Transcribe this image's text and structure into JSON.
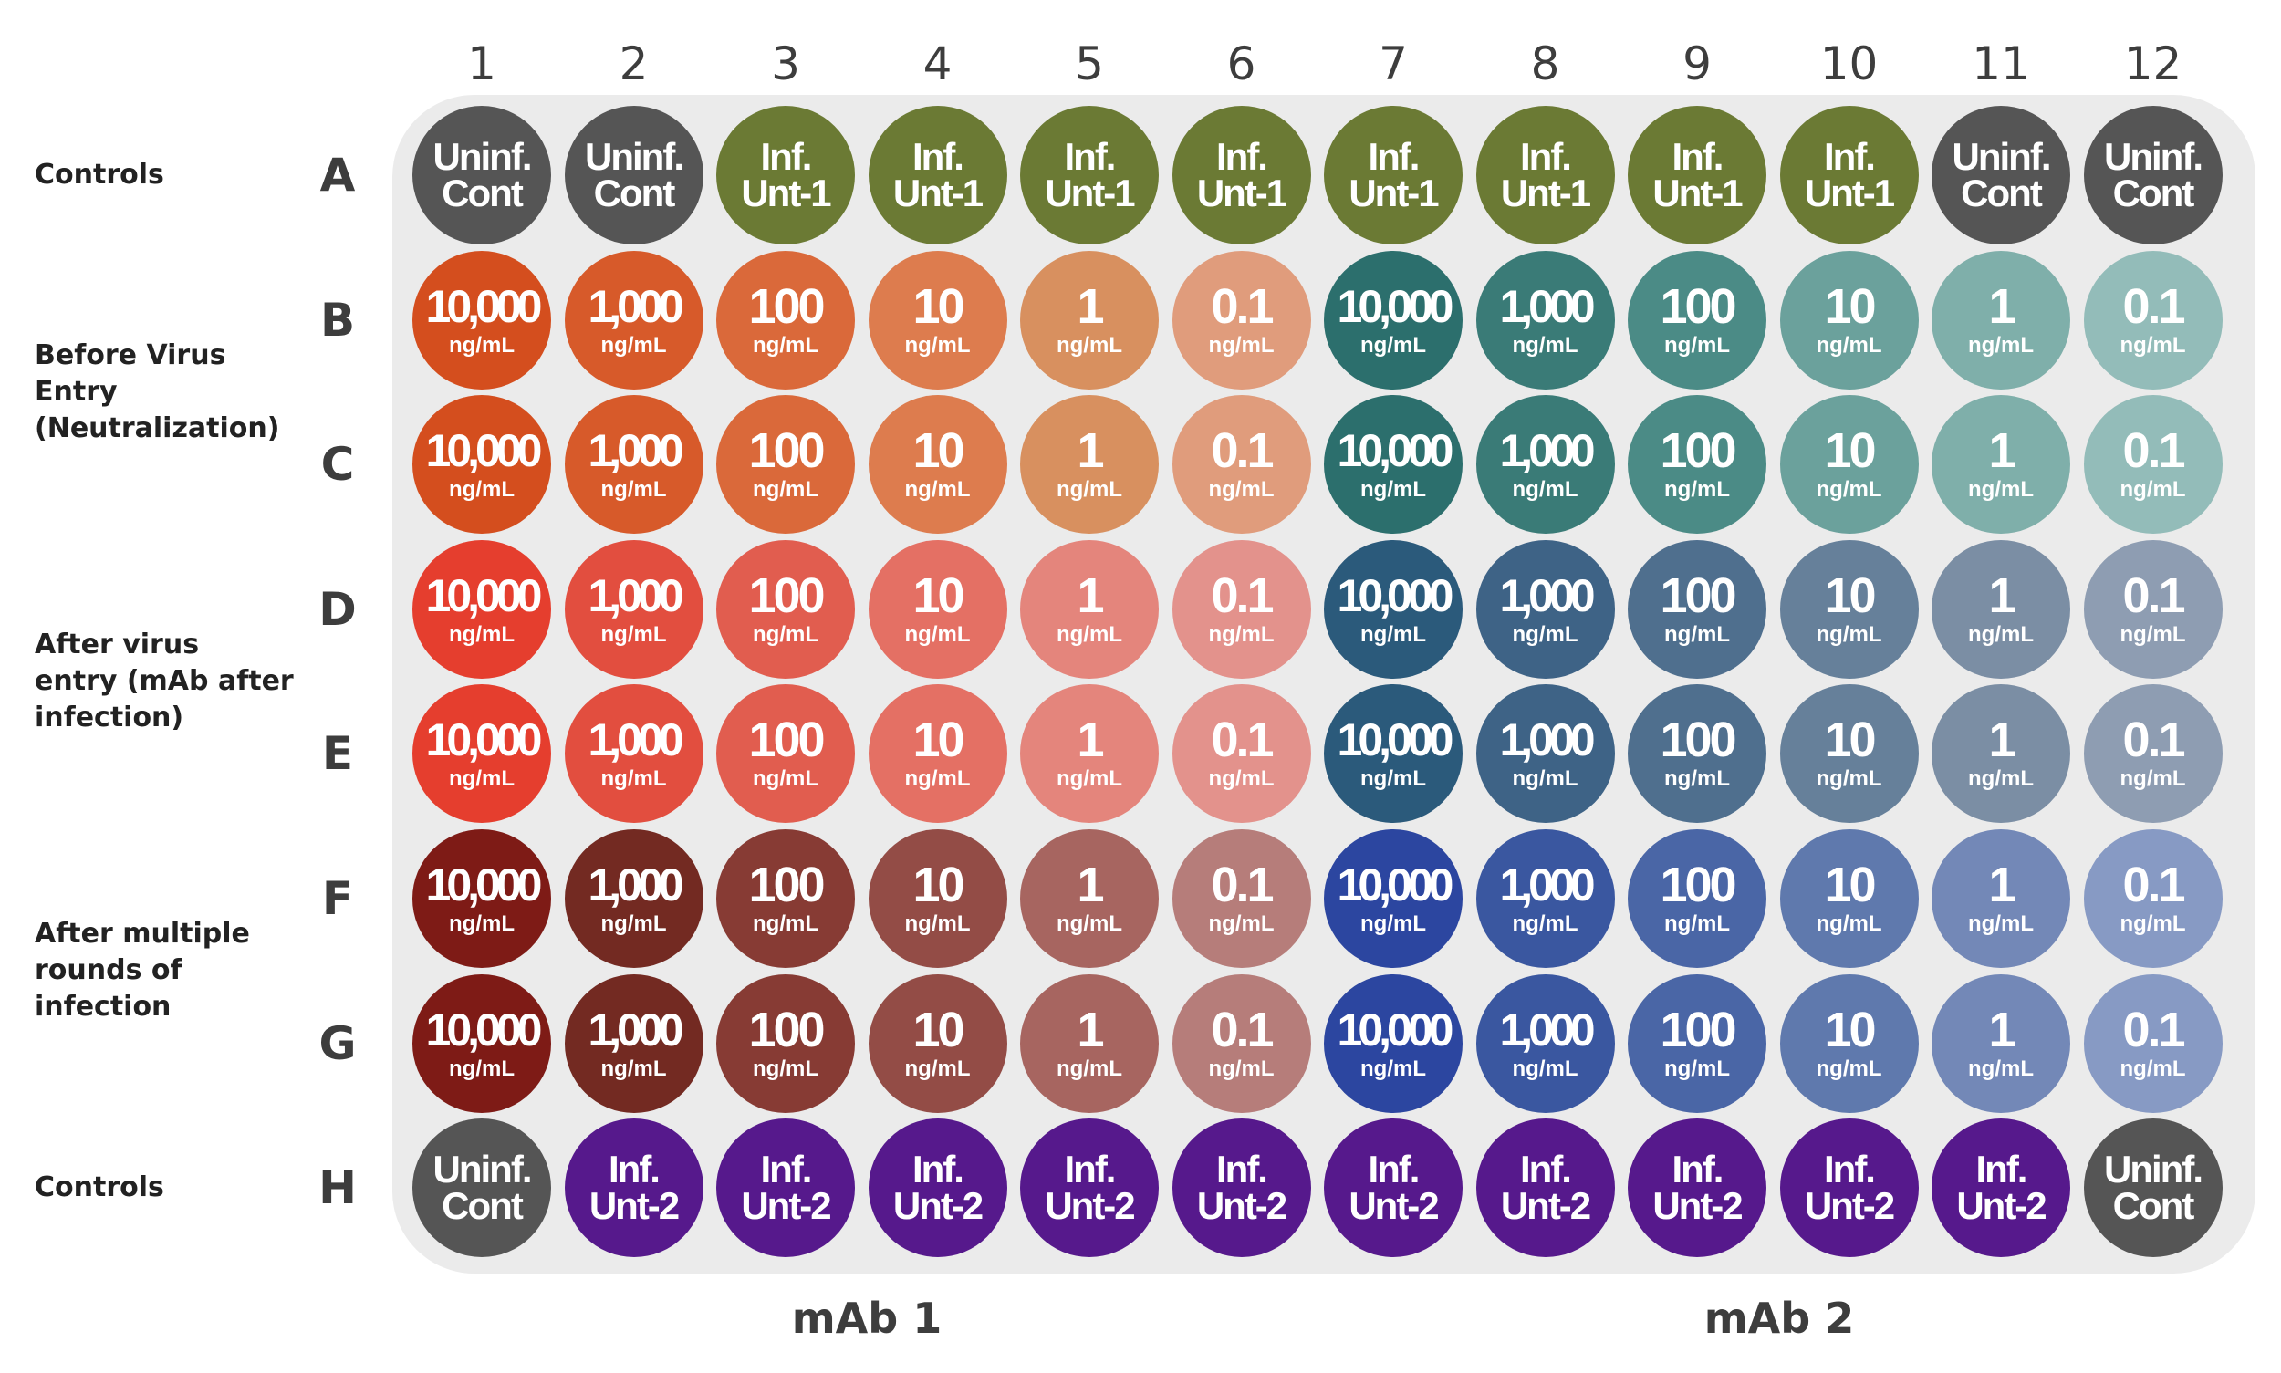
{
  "columns": [
    "1",
    "2",
    "3",
    "4",
    "5",
    "6",
    "7",
    "8",
    "9",
    "10",
    "11",
    "12"
  ],
  "rows": [
    "A",
    "B",
    "C",
    "D",
    "E",
    "F",
    "G",
    "H"
  ],
  "group_labels": [
    {
      "text": "Controls",
      "row": "A"
    },
    {
      "text": "Before Virus\nEntry\n(Neutralization)",
      "rows": [
        "B",
        "C"
      ]
    },
    {
      "text": "After virus\nentry (mAb after\ninfection)",
      "rows": [
        "D",
        "E"
      ]
    },
    {
      "text": "After multiple\nrounds of\ninfection",
      "rows": [
        "F",
        "G"
      ]
    },
    {
      "text": "Controls",
      "row": "H"
    }
  ],
  "antibody_labels": [
    "mAb 1",
    "mAb 2"
  ],
  "unit": "ng/mL",
  "control_labels": {
    "uninfected": [
      "Uninf.",
      "Cont"
    ],
    "infected_1": [
      "Inf.",
      "Unt-1"
    ],
    "infected_2": [
      "Inf.",
      "Unt-2"
    ]
  },
  "concentrations": [
    "10,000",
    "1,000",
    "100",
    "10",
    "1",
    "0.1",
    "10,000",
    "1,000",
    "100",
    "10",
    "1",
    "0.1"
  ],
  "plate": {
    "A": [
      {
        "type": "uninfected",
        "color": "#555555"
      },
      {
        "type": "uninfected",
        "color": "#555555"
      },
      {
        "type": "infected_1",
        "color": "#6b7a34"
      },
      {
        "type": "infected_1",
        "color": "#6b7a34"
      },
      {
        "type": "infected_1",
        "color": "#6b7a34"
      },
      {
        "type": "infected_1",
        "color": "#6b7a34"
      },
      {
        "type": "infected_1",
        "color": "#6b7a34"
      },
      {
        "type": "infected_1",
        "color": "#6b7a34"
      },
      {
        "type": "infected_1",
        "color": "#6b7a34"
      },
      {
        "type": "infected_1",
        "color": "#6b7a34"
      },
      {
        "type": "uninfected",
        "color": "#555555"
      },
      {
        "type": "uninfected",
        "color": "#555555"
      }
    ],
    "B": [
      "#d44e1e",
      "#d75a2a",
      "#da693a",
      "#dd7c4e",
      "#d8905f",
      "#e09c7c",
      "#2c6f6d",
      "#3a7b77",
      "#4b8b86",
      "#6ba19c",
      "#7fafaa",
      "#93bcb9"
    ],
    "C": [
      "#d44e1e",
      "#d75a2a",
      "#da693a",
      "#dd7c4e",
      "#d8905f",
      "#e09c7c",
      "#2c6f6d",
      "#3a7b77",
      "#4b8b86",
      "#6ba19c",
      "#7fafaa",
      "#93bcb9"
    ],
    "D": [
      "#e53e2e",
      "#e24e3f",
      "#e15d4f",
      "#e47064",
      "#e4857c",
      "#e3928c",
      "#2b5a7b",
      "#3e6386",
      "#4f6f8e",
      "#66809a",
      "#7b8ea4",
      "#8e9db2"
    ],
    "E": [
      "#e53e2e",
      "#e24e3f",
      "#e15d4f",
      "#e47064",
      "#e4857c",
      "#e3928c",
      "#2b5a7b",
      "#3e6386",
      "#4f6f8e",
      "#66809a",
      "#7b8ea4",
      "#8e9db2"
    ],
    "F": [
      "#7e1b16",
      "#732a22",
      "#873b34",
      "#934c46",
      "#a76560",
      "#b67d7a",
      "#2c46a0",
      "#3a57a0",
      "#4a66a6",
      "#5f79ad",
      "#7388b7",
      "#879ac4"
    ],
    "G": [
      "#7e1b16",
      "#732a22",
      "#873b34",
      "#934c46",
      "#a76560",
      "#b67d7a",
      "#2c46a0",
      "#3a57a0",
      "#4a66a6",
      "#5f79ad",
      "#7388b7",
      "#879ac4"
    ],
    "H": [
      {
        "type": "uninfected",
        "color": "#555555"
      },
      {
        "type": "infected_2",
        "color": "#56198c"
      },
      {
        "type": "infected_2",
        "color": "#56198c"
      },
      {
        "type": "infected_2",
        "color": "#56198c"
      },
      {
        "type": "infected_2",
        "color": "#56198c"
      },
      {
        "type": "infected_2",
        "color": "#56198c"
      },
      {
        "type": "infected_2",
        "color": "#56198c"
      },
      {
        "type": "infected_2",
        "color": "#56198c"
      },
      {
        "type": "infected_2",
        "color": "#56198c"
      },
      {
        "type": "infected_2",
        "color": "#56198c"
      },
      {
        "type": "infected_2",
        "color": "#56198c"
      },
      {
        "type": "uninfected",
        "color": "#555555"
      }
    ]
  }
}
